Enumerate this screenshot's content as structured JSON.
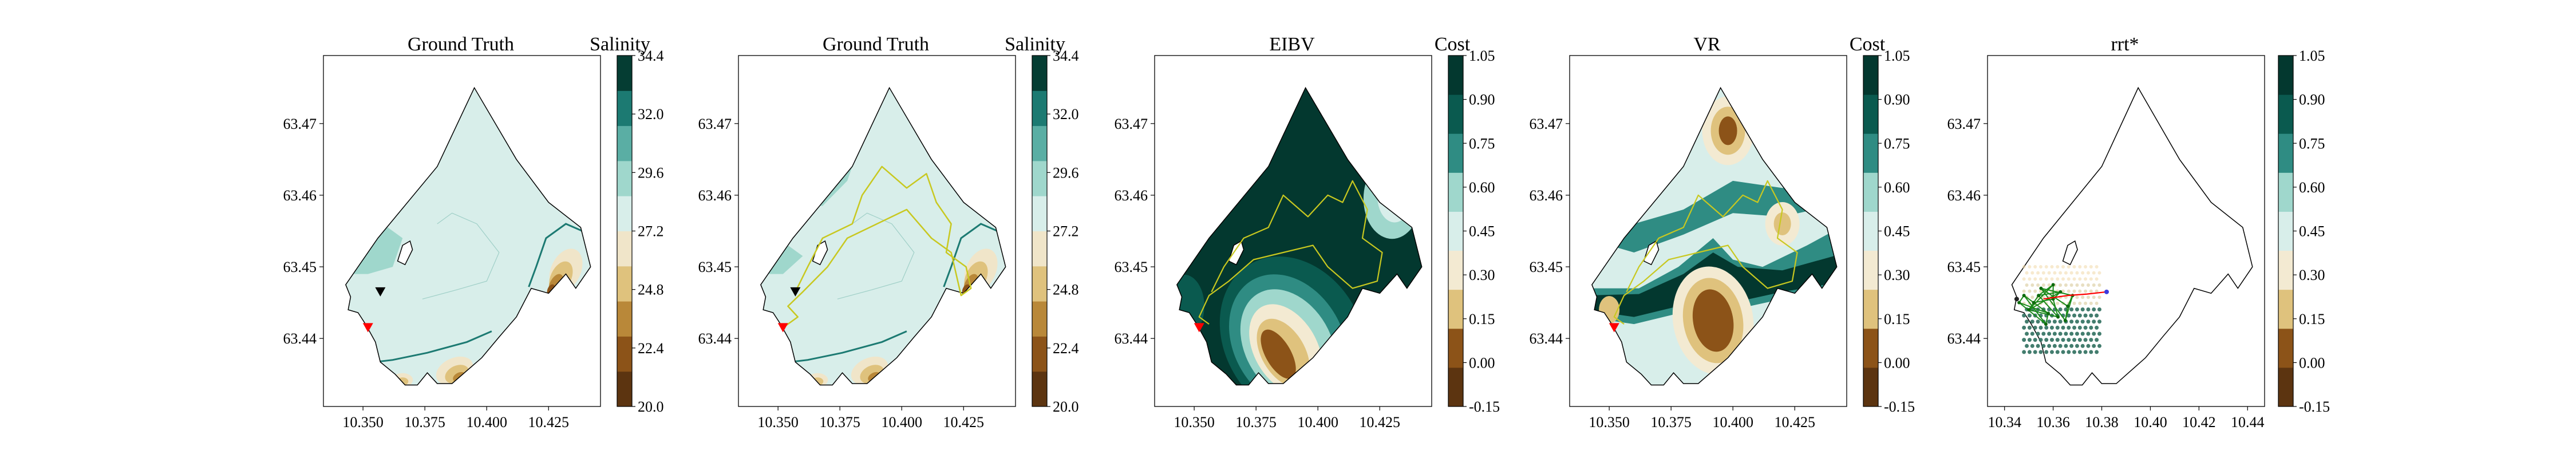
{
  "chart_data": [
    {
      "type": "contour",
      "title": "Ground Truth",
      "colorbar_label": "Salinity",
      "colorbar_levels": [
        20.0,
        22.4,
        24.8,
        27.2,
        29.6,
        32.0,
        34.4
      ],
      "colorbar_tick_labels": [
        "20.0",
        "22.4",
        "24.8",
        "27.2",
        "29.6",
        "32.0",
        "34.4"
      ],
      "x_ticks": [
        "10.350",
        "10.375",
        "10.400",
        "10.425"
      ],
      "y_ticks": [
        "63.44",
        "63.45",
        "63.46",
        "63.47"
      ],
      "markers": [
        {
          "type": "triangle-down",
          "color": "#000000",
          "x": 10.357,
          "y": 63.4465
        },
        {
          "type": "triangle-down",
          "color": "#ff0000",
          "x": 10.352,
          "y": 63.4415
        }
      ]
    },
    {
      "type": "contour",
      "title": "Ground Truth",
      "colorbar_label": "Salinity",
      "colorbar_levels": [
        20.0,
        22.4,
        24.8,
        27.2,
        29.6,
        32.0,
        34.4
      ],
      "colorbar_tick_labels": [
        "20.0",
        "22.4",
        "24.8",
        "27.2",
        "29.6",
        "32.0",
        "34.4"
      ],
      "x_ticks": [
        "10.350",
        "10.375",
        "10.400",
        "10.425"
      ],
      "y_ticks": [
        "63.44",
        "63.45",
        "63.46",
        "63.47"
      ],
      "path_color": "#c8c820",
      "markers": [
        {
          "type": "triangle-down",
          "color": "#000000",
          "x": 10.357,
          "y": 63.4465
        },
        {
          "type": "triangle-down",
          "color": "#ff0000",
          "x": 10.352,
          "y": 63.4415
        }
      ]
    },
    {
      "type": "contour",
      "title": "EIBV",
      "colorbar_label": "Cost",
      "colorbar_levels": [
        -0.15,
        0.0,
        0.15,
        0.3,
        0.45,
        0.6,
        0.75,
        0.9,
        1.05
      ],
      "colorbar_tick_labels": [
        "-0.15",
        "0.00",
        "0.15",
        "0.30",
        "0.45",
        "0.60",
        "0.75",
        "0.90",
        "1.05"
      ],
      "x_ticks": [
        "10.350",
        "10.375",
        "10.400",
        "10.425"
      ],
      "y_ticks": [
        "63.44",
        "63.45",
        "63.46",
        "63.47"
      ],
      "path_color": "#c8c820"
    },
    {
      "type": "contour",
      "title": "VR",
      "colorbar_label": "Cost",
      "colorbar_levels": [
        -0.15,
        0.0,
        0.15,
        0.3,
        0.45,
        0.6,
        0.75,
        0.9,
        1.05
      ],
      "colorbar_tick_labels": [
        "-0.15",
        "0.00",
        "0.15",
        "0.30",
        "0.45",
        "0.60",
        "0.75",
        "0.90",
        "1.05"
      ],
      "x_ticks": [
        "10.350",
        "10.375",
        "10.400",
        "10.425"
      ],
      "y_ticks": [
        "63.44",
        "63.45",
        "63.46",
        "63.47"
      ],
      "path_color": "#c8c820"
    },
    {
      "type": "scatter",
      "title": "rrt*",
      "colorbar_levels": [
        -0.15,
        0.0,
        0.15,
        0.3,
        0.45,
        0.6,
        0.75,
        0.9,
        1.05
      ],
      "colorbar_tick_labels": [
        "-0.15",
        "0.00",
        "0.15",
        "0.30",
        "0.45",
        "0.60",
        "0.75",
        "0.90",
        "1.05"
      ],
      "x_ticks": [
        "10.34",
        "10.36",
        "10.38",
        "10.40",
        "10.42",
        "10.44"
      ],
      "y_ticks": [
        "63.44",
        "63.45",
        "63.46",
        "63.47"
      ],
      "tree_color": "#1a8a1a",
      "best_path_color": "#ff0000"
    }
  ],
  "colors": {
    "salinity_bands": [
      "#5c3410",
      "#8c5318",
      "#b98839",
      "#dfc27d",
      "#f0e5c9",
      "#d8eeea",
      "#9fd7cc",
      "#5aaea4",
      "#1c7a72",
      "#053d33"
    ],
    "cost_bands": [
      "#5c3410",
      "#8c5318",
      "#dfc27d",
      "#f3ead2",
      "#d8eeea",
      "#9fd7cc",
      "#2f8c83",
      "#0a5a4f",
      "#03382f"
    ],
    "path": "#c8c820",
    "outline": "#000000"
  }
}
